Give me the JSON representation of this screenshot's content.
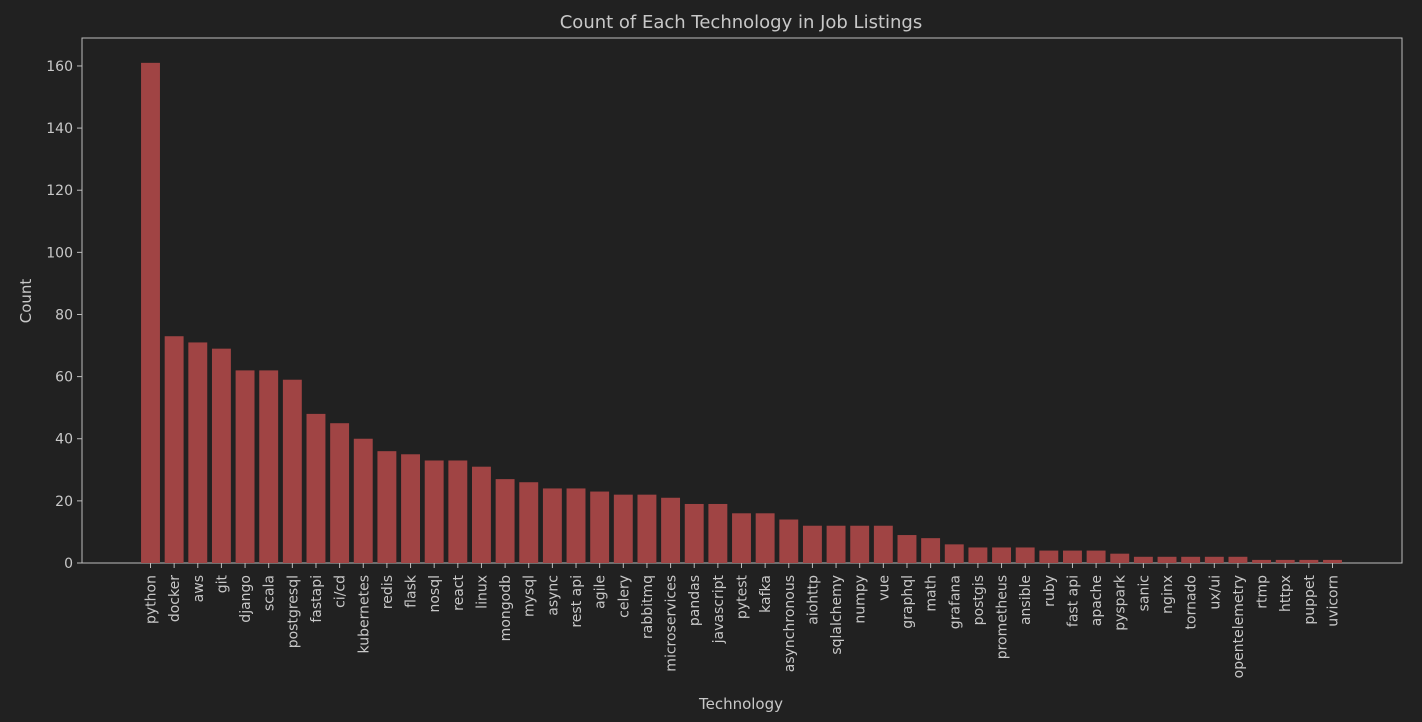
{
  "colors": {
    "background": "#212121",
    "bar": "#a04444",
    "text": "#c8c8c8",
    "axis": "#bdbdbd"
  },
  "chart_data": {
    "type": "bar",
    "title": "Count of Each Technology in Job Listings",
    "xlabel": "Technology",
    "ylabel": "Count",
    "ylim": [
      0,
      169
    ],
    "yticks": [
      0,
      20,
      40,
      60,
      80,
      100,
      120,
      140,
      160
    ],
    "grid": false,
    "categories": [
      "python",
      "docker",
      "aws",
      "git",
      "django",
      "scala",
      "postgresql",
      "fastapi",
      "ci/cd",
      "kubernetes",
      "redis",
      "flask",
      "nosql",
      "react",
      "linux",
      "mongodb",
      "mysql",
      "async",
      "rest api",
      "agile",
      "celery",
      "rabbitmq",
      "microservices",
      "pandas",
      "javascript",
      "pytest",
      "kafka",
      "asynchronous",
      "aiohttp",
      "sqlalchemy",
      "numpy",
      "vue",
      "graphql",
      "math",
      "grafana",
      "postgis",
      "prometheus",
      "ansible",
      "ruby",
      "fast api",
      "apache",
      "pyspark",
      "sanic",
      "nginx",
      "tornado",
      "ux/ui",
      "opentelemetry",
      "rtmp",
      "httpx",
      "puppet",
      "uvicorn"
    ],
    "values": [
      161,
      73,
      71,
      69,
      62,
      62,
      59,
      48,
      45,
      40,
      36,
      35,
      33,
      33,
      31,
      27,
      26,
      24,
      24,
      23,
      22,
      22,
      21,
      19,
      19,
      16,
      16,
      14,
      12,
      12,
      12,
      12,
      9,
      8,
      6,
      5,
      5,
      5,
      4,
      4,
      4,
      3,
      2,
      2,
      2,
      2,
      2,
      1,
      1,
      1,
      1
    ]
  }
}
